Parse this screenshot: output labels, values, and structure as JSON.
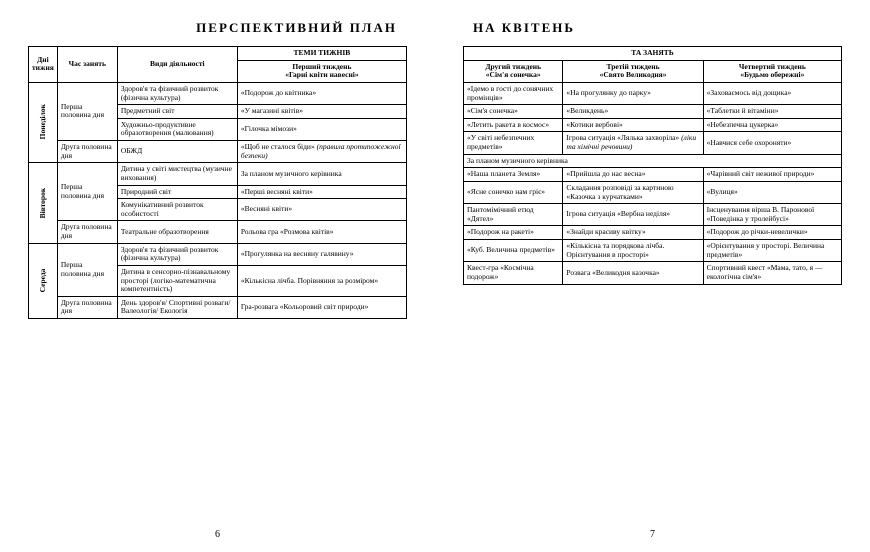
{
  "title_left": "ПЕРСПЕКТИВНИЙ  ПЛАН",
  "title_right": "НА  КВІТЕНЬ",
  "page_left_num": "6",
  "page_right_num": "7",
  "left_headers": {
    "day": "Дні тижня",
    "time": "Час занять",
    "activity": "Види діяльності",
    "themes": "ТЕМИ ТИЖНІВ",
    "w1a": "Перший тиждень",
    "w1b": "«Гарні квіти навесні»"
  },
  "right_headers": {
    "themes": "ТА ЗАНЯТЬ",
    "w2a": "Другий тиждень",
    "w2b": "«Сім'я сонечка»",
    "w3a": "Третій тиждень",
    "w3b": "«Свято Великодня»",
    "w4a": "Четвертий тиждень",
    "w4b": "«Будьмо обережні»"
  },
  "days": [
    "Понеділок",
    "Вівторок",
    "Середа"
  ],
  "time_first": "Перша половина дня",
  "time_second": "Друга половина дня",
  "left_rows": [
    {
      "act": "Здоров'я та фізичний розвиток (фізична культура)",
      "w1": "«Подорож до квітника»"
    },
    {
      "act": "Предметний світ",
      "w1": "«У магазині квітів»"
    },
    {
      "act": "Художньо-продуктивне образотворення (малювання)",
      "w1": "«Гілочка мімози»"
    },
    {
      "act": "ОБЖД",
      "w1": "«Щоб не сталося біди» (правила протипожежної безпеки)",
      "w1_italic_part": "(правила протипожежної безпеки)"
    },
    {
      "act": "Дитина у світі мистецтва (музичне виховання)",
      "w1": "За планом музичного керівника"
    },
    {
      "act": "Природний світ",
      "w1": "«Перші весняні квіти»"
    },
    {
      "act": "Комунікативний розвиток особистості",
      "w1": "«Весняні квіти»"
    },
    {
      "act": "Театральне образотворення",
      "w1": "Рольова гра «Розмова квітів»"
    },
    {
      "act": "Здоров'я та фізичний розвиток (фізична культура)",
      "w1": "«Прогулянка на весняну галявину»"
    },
    {
      "act": "Дитина в сенсорно-пізнавальному просторі (логіко-математична компетентність)",
      "w1": "«Кількісна лічба. Порівняння за розміром»"
    },
    {
      "act": "День здоров'я/ Спортивні розваги/ Валеологія/ Екологія",
      "w1": "Гра-розвага «Кольоровий світ природи»"
    }
  ],
  "right_rows": [
    {
      "w2": "«Ідемо в гості до сонячних промінців»",
      "w3": "«На прогулянку до парку»",
      "w4": "«Заховаємось від дощика»"
    },
    {
      "w2": "«Сім'я сонечка»",
      "w3": "«Великдень»",
      "w4": "«Таблетки й вітаміни»"
    },
    {
      "w2": "«Летить ракета в космос»",
      "w3": "«Котики вербові»",
      "w4": "«Небезпечна цукерка»"
    },
    {
      "w2": "«У світі небезпечних предметів»",
      "w3": "Ігрова ситуація «Лялька захворіла» (ліки та хімічні речовини)",
      "w3_italic_part": "(ліки та хімічні речовини)",
      "w4": "«Навчися себе охороняти»"
    },
    {
      "span": "За планом музичного керівника"
    },
    {
      "w2": "«Наша планета Земля»",
      "w3": "«Прийшла до нас весна»",
      "w4": "«Чарівний світ неживої природи»"
    },
    {
      "w2": "«Ясне сонечко нам гріє»",
      "w3": "Складання розповіді за картиною «Казочка з курчатками»",
      "w4": "«Вулиця»"
    },
    {
      "w2": "Пантомімічний етюд «Дятел»",
      "w3": "Ігрова ситуація «Вербна неділя»",
      "w4": "Інсценування вірша В. Паронової «Поведінка у тролейбусі»"
    },
    {
      "w2": "«Подорож на ракеті»",
      "w3": "«Знайди красиву квітку»",
      "w4": "«Подорож до річки-невелички»"
    },
    {
      "w2": "«Куб. Величина предметів»",
      "w3": "«Кількісна та порядкова лічба. Орієнтування в просторі»",
      "w4": "«Орієнтування у просторі. Величина предметів»"
    },
    {
      "w2": "Квест-гра «Космічна подорож»",
      "w3": "Розвага «Великодня казочка»",
      "w4": "Спортивний квест «Мама, тато, я — екологічна сім'я»"
    }
  ]
}
